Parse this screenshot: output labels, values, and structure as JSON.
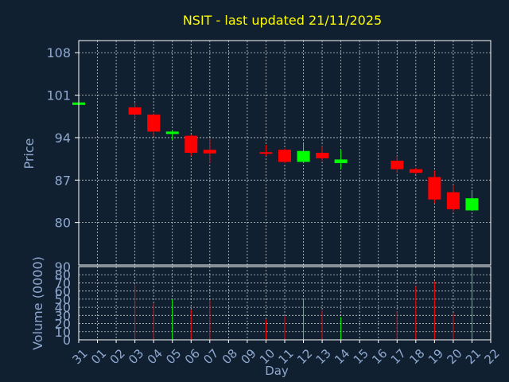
{
  "theme": {
    "background": "#102030",
    "frame": "#ffffff",
    "grid": "#ffffff",
    "text": "#8fa8d0",
    "title": "#ffff00",
    "up": "#00ff00",
    "down": "#ff0000"
  },
  "chart_data": [
    {
      "type": "candlestick",
      "title": "NSIT - last updated 21/11/2025",
      "ylabel": "Price",
      "ylim": [
        73,
        110
      ],
      "yticks": [
        80,
        87,
        94,
        101,
        108
      ],
      "grid": true,
      "x": [
        "31",
        "01",
        "02",
        "03",
        "04",
        "05",
        "06",
        "07",
        "08",
        "09",
        "10",
        "11",
        "12",
        "13",
        "14",
        "15",
        "16",
        "17",
        "18",
        "19",
        "20",
        "21",
        "22"
      ],
      "candles": [
        {
          "day": "31",
          "open": 99.4,
          "high": 99.8,
          "low": 99.4,
          "close": 99.8
        },
        {
          "day": "03",
          "open": 99.0,
          "high": 99.8,
          "low": 97.0,
          "close": 97.8
        },
        {
          "day": "04",
          "open": 97.8,
          "high": 98.0,
          "low": 94.2,
          "close": 95.0
        },
        {
          "day": "05",
          "open": 94.6,
          "high": 95.2,
          "low": 93.6,
          "close": 95.0
        },
        {
          "day": "06",
          "open": 94.3,
          "high": 94.5,
          "low": 91.0,
          "close": 91.5
        },
        {
          "day": "07",
          "open": 92.0,
          "high": 93.8,
          "low": 89.8,
          "close": 91.4
        },
        {
          "day": "10",
          "open": 91.6,
          "high": 92.8,
          "low": 91.0,
          "close": 91.4
        },
        {
          "day": "11",
          "open": 92.0,
          "high": 92.2,
          "low": 89.8,
          "close": 90.0
        },
        {
          "day": "12",
          "open": 90.0,
          "high": 93.0,
          "low": 89.8,
          "close": 91.8
        },
        {
          "day": "13",
          "open": 91.5,
          "high": 92.6,
          "low": 90.2,
          "close": 90.6
        },
        {
          "day": "14",
          "open": 89.8,
          "high": 92.0,
          "low": 88.8,
          "close": 90.4
        },
        {
          "day": "17",
          "open": 90.2,
          "high": 91.0,
          "low": 88.2,
          "close": 88.8
        },
        {
          "day": "18",
          "open": 88.8,
          "high": 89.0,
          "low": 88.0,
          "close": 88.2
        },
        {
          "day": "19",
          "open": 87.5,
          "high": 88.6,
          "low": 83.2,
          "close": 83.8
        },
        {
          "day": "20",
          "open": 85.0,
          "high": 86.2,
          "low": 81.8,
          "close": 82.2
        },
        {
          "day": "21",
          "open": 82.0,
          "high": 85.2,
          "low": 82.0,
          "close": 84.0
        }
      ]
    },
    {
      "type": "bar",
      "ylabel": "Volume (0000)",
      "xlabel": "Day",
      "ylim": [
        0,
        90
      ],
      "yticks": [
        0,
        10,
        20,
        30,
        40,
        50,
        60,
        70,
        80,
        90
      ],
      "grid": true,
      "volumes": [
        {
          "day": "03",
          "value": 68,
          "color": "down"
        },
        {
          "day": "04",
          "value": 45,
          "color": "down"
        },
        {
          "day": "05",
          "value": 50,
          "color": "up"
        },
        {
          "day": "06",
          "value": 37,
          "color": "down"
        },
        {
          "day": "07",
          "value": 49,
          "color": "down"
        },
        {
          "day": "10",
          "value": 25,
          "color": "down"
        },
        {
          "day": "11",
          "value": 29,
          "color": "down"
        },
        {
          "day": "12",
          "value": 49,
          "color": "up"
        },
        {
          "day": "13",
          "value": 36,
          "color": "down"
        },
        {
          "day": "14",
          "value": 28,
          "color": "up"
        },
        {
          "day": "17",
          "value": 35,
          "color": "down"
        },
        {
          "day": "18",
          "value": 66,
          "color": "down"
        },
        {
          "day": "19",
          "value": 72,
          "color": "down"
        },
        {
          "day": "20",
          "value": 33,
          "color": "down"
        },
        {
          "day": "21",
          "value": 88,
          "color": "up"
        }
      ]
    }
  ]
}
